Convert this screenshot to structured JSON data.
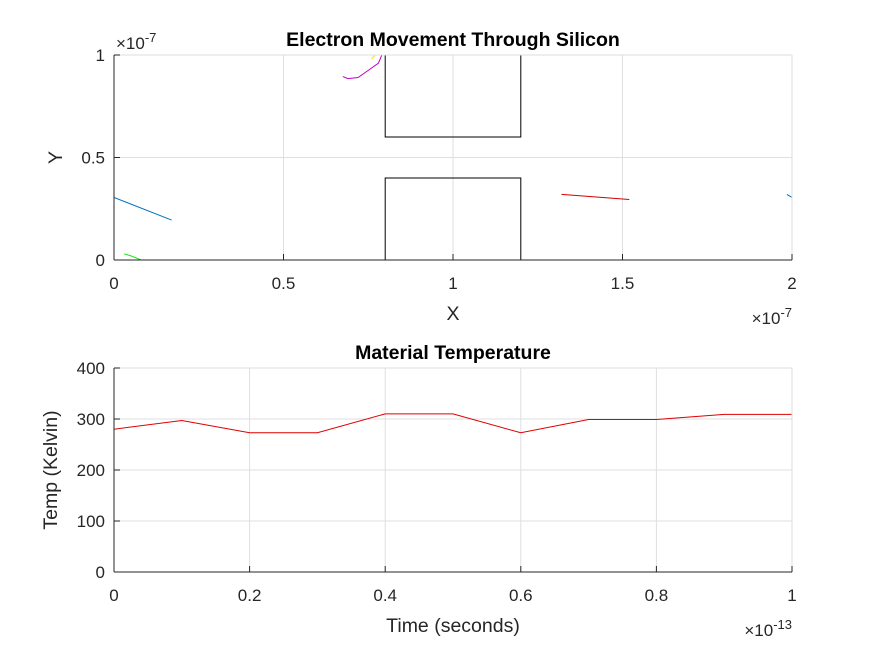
{
  "chart_data": [
    {
      "type": "line",
      "title": "Electron Movement Through Silicon",
      "xlabel": "X",
      "ylabel": "Y",
      "xlim": [
        0,
        2e-07
      ],
      "ylim": [
        0,
        1e-07
      ],
      "x_ticks": [
        0,
        5e-08,
        1e-07,
        1.5e-07,
        2e-07
      ],
      "x_tick_labels": [
        "0",
        "0.5",
        "1",
        "1.5",
        "2"
      ],
      "y_ticks": [
        0,
        5e-08,
        1e-07
      ],
      "y_tick_labels": [
        "0",
        "0.5",
        "1"
      ],
      "x_exponent": {
        "base": "×10",
        "exp": "-7"
      },
      "y_exponent": {
        "base": "×10",
        "exp": "-7"
      },
      "grid": true,
      "boxes": [
        {
          "name": "upper-barrier",
          "x": [
            8e-08,
            1.2e-07
          ],
          "y": [
            6e-08,
            1e-07
          ]
        },
        {
          "name": "lower-barrier",
          "x": [
            8e-08,
            1.2e-07
          ],
          "y": [
            0,
            4e-08
          ]
        }
      ],
      "series": [
        {
          "name": "electron-blue-1",
          "color": "#0072bd",
          "x": [
            0,
            1.7e-08
          ],
          "y": [
            3.05e-08,
            1.95e-08
          ]
        },
        {
          "name": "electron-green",
          "color": "#1fe31f",
          "x": [
            3e-09,
            5e-09,
            8e-09
          ],
          "y": [
            3e-09,
            2e-09,
            0
          ]
        },
        {
          "name": "electron-magenta",
          "color": "#c000c8",
          "x": [
            6.75e-08,
            6.9e-08,
            7.2e-08,
            7.5e-08,
            7.8e-08,
            7.9e-08
          ],
          "y": [
            8.95e-08,
            8.85e-08,
            8.9e-08,
            9.25e-08,
            9.6e-08,
            1e-07
          ]
        },
        {
          "name": "electron-yellow",
          "color": "#e6e600",
          "x": [
            7.6e-08,
            7.7e-08
          ],
          "y": [
            9.8e-08,
            1e-07
          ]
        },
        {
          "name": "electron-red",
          "color": "#d40000",
          "x": [
            1.32e-07,
            1.52e-07
          ],
          "y": [
            3.2e-08,
            2.95e-08
          ]
        },
        {
          "name": "electron-blue-2",
          "color": "#0072bd",
          "x": [
            1.985e-07,
            2e-07
          ],
          "y": [
            3.2e-08,
            3.05e-08
          ]
        }
      ]
    },
    {
      "type": "line",
      "title": "Material Temperature",
      "xlabel": "Time (seconds)",
      "ylabel": "Temp (Kelvin)",
      "xlim": [
        0,
        1e-13
      ],
      "ylim": [
        0,
        400
      ],
      "x_ticks": [
        0,
        2e-14,
        4e-14,
        6e-14,
        8e-14,
        1e-13
      ],
      "x_tick_labels": [
        "0",
        "0.2",
        "0.4",
        "0.6",
        "0.8",
        "1"
      ],
      "y_ticks": [
        0,
        100,
        200,
        300,
        400
      ],
      "y_tick_labels": [
        "0",
        "100",
        "200",
        "300",
        "400"
      ],
      "x_exponent": {
        "base": "×10",
        "exp": "-13"
      },
      "grid": true,
      "series": [
        {
          "name": "temperature",
          "color": "#e00000",
          "x": [
            0,
            1e-14,
            2e-14,
            3e-14,
            4e-14,
            5e-14,
            6e-14,
            7e-14,
            8e-14,
            9e-14,
            1e-13
          ],
          "y": [
            280,
            297,
            273,
            273,
            310,
            310,
            273,
            299,
            299,
            309,
            309
          ]
        }
      ]
    }
  ]
}
